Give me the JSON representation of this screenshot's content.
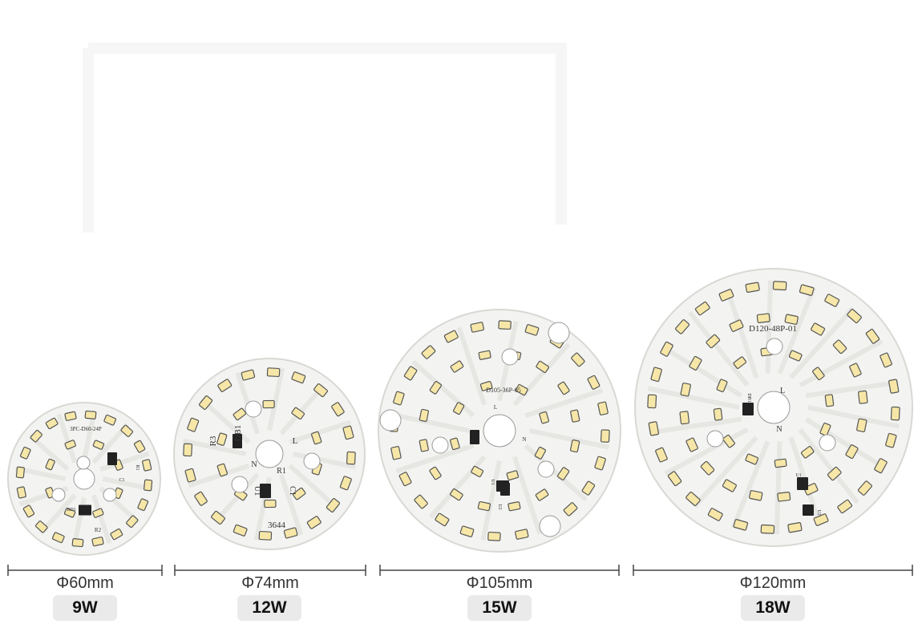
{
  "colors": {
    "board": "#f3f3f1",
    "led": "#f6e7a8",
    "led_border": "#555555",
    "chip": "#222222",
    "badge": "#eaeaea"
  },
  "boards": [
    {
      "diameter_label": "Φ60mm",
      "wattage_label": "9W",
      "print": [
        "3PC-D60-24P",
        "BD1",
        "R2",
        "C1",
        "R1"
      ]
    },
    {
      "diameter_label": "Φ74mm",
      "wattage_label": "12W",
      "print": [
        "DB1",
        "R3",
        "L",
        "N",
        "R1",
        "U1",
        "C1",
        "3644"
      ]
    },
    {
      "diameter_label": "Φ105mm",
      "wattage_label": "15W",
      "print": [
        "D105-36P-05",
        "L",
        "N",
        "U1",
        "U2"
      ]
    },
    {
      "diameter_label": "Φ120mm",
      "wattage_label": "18W",
      "print": [
        "D120-48P-01",
        "L",
        "N",
        "DB1",
        "U1",
        "U2"
      ]
    }
  ]
}
